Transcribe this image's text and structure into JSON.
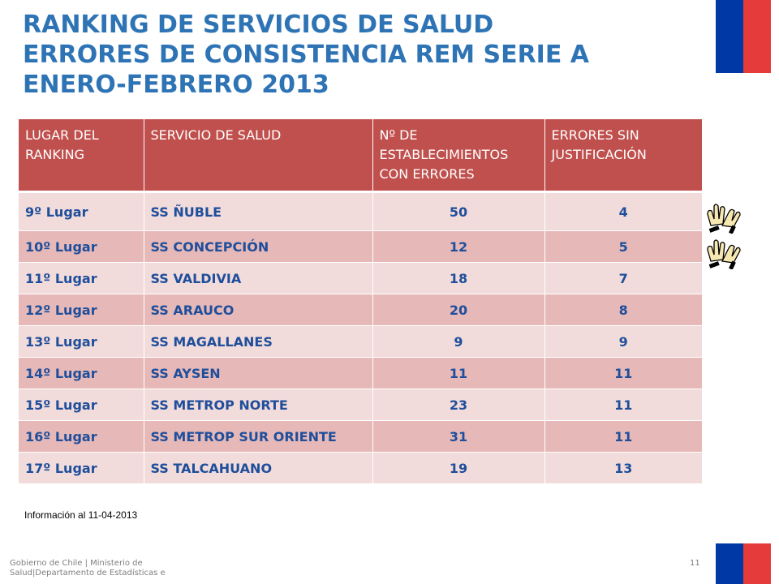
{
  "title_lines": [
    "RANKING DE SERVICIOS DE SALUD",
    "ERRORES DE CONSISTENCIA REM SERIE A",
    "ENERO-FEBRERO 2013"
  ],
  "colors": {
    "title": "#2E74B5",
    "flag_blue": "#0039A6",
    "flag_red": "#E63B3B",
    "header_bg": "#C0504D",
    "row_light": "#F2DCDB",
    "row_dark": "#E6B9B8",
    "cell_text": "#1F4E9B"
  },
  "table": {
    "headers": [
      "LUGAR DEL RANKING",
      "SERVICIO DE SALUD",
      "Nº DE ESTABLECIMIENTOS CON ERRORES",
      "ERRORES SIN JUSTIFICACIÓN"
    ],
    "rows": [
      [
        "9º Lugar",
        "SS ÑUBLE",
        "50",
        "4"
      ],
      [
        "10º Lugar",
        "SS CONCEPCIÓN",
        "12",
        "5"
      ],
      [
        "11º Lugar",
        "SS VALDIVIA",
        "18",
        "7"
      ],
      [
        "12º Lugar",
        "SS ARAUCO",
        "20",
        "8"
      ],
      [
        "13º Lugar",
        "SS MAGALLANES",
        "9",
        "9"
      ],
      [
        "14º Lugar",
        "SS AYSEN",
        "11",
        "11"
      ],
      [
        "15º Lugar",
        "SS METROP NORTE",
        "23",
        "11"
      ],
      [
        "16º Lugar",
        "SS METROP SUR ORIENTE",
        "31",
        "11"
      ],
      [
        "17º Lugar",
        "SS TALCAHUANO",
        "19",
        "13"
      ]
    ]
  },
  "icons": [
    "clapping-hands-icon",
    "clapping-hands-icon"
  ],
  "info_note": "Información al 11-04-2013",
  "footer_text": "Gobierno de Chile | Ministerio de Salud|Departamento de Estadísticas e",
  "page_number": "11"
}
